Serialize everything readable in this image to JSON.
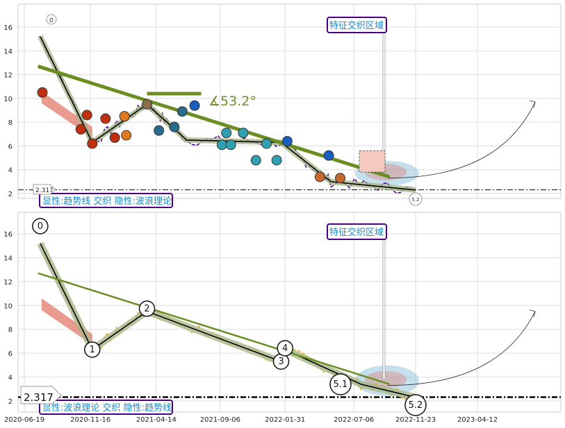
{
  "colors": {
    "trend": "#6b8e23",
    "price_top": "#4b0082",
    "price_bottom": "#e8a835",
    "wave": "#000000",
    "wave_halo": "#a8b88a",
    "red_fill": "#e07060",
    "ellipse": "#9ecae1",
    "box_border": "#4b0082",
    "box_text": "#1a86c8",
    "support": "#000000"
  },
  "top_panel": {
    "ylim": [
      1.2,
      17.4
    ],
    "yticks": [
      "2",
      "4",
      "6",
      "8",
      "10",
      "12",
      "14",
      "16"
    ],
    "annotation_box": "特征交织区域",
    "legend_text": "显性:趋势线 交织 隐性:波浪理论",
    "angle_label": "∡53.2°",
    "support_label": "2.317",
    "wave_start_label": "0",
    "wave_end_label": "5.2"
  },
  "bottom_panel": {
    "ylim": [
      1.2,
      17.4
    ],
    "yticks": [
      "2",
      "4",
      "6",
      "8",
      "10",
      "12",
      "14",
      "16"
    ],
    "annotation_box": "特征交织区域",
    "legend_text": "显性:波浪理论 交织 隐性:趋势线",
    "support_label": "2.317",
    "wave_labels": [
      "0",
      "1",
      "2",
      "3",
      "4",
      "5.1",
      "5.2"
    ]
  },
  "x_axis": {
    "tick_labels": [
      "2020-06-19",
      "2020-11-16",
      "2021-04-14",
      "2021-09-06",
      "2022-01-31",
      "2022-07-06",
      "2022-11-23",
      "2023-04-12"
    ]
  },
  "chart_data": [
    {
      "type": "line",
      "panel": "top",
      "support_level": 2.317,
      "waves": [
        {
          "x": "2020-07-25",
          "y": 15.2
        },
        {
          "x": "2020-11-20",
          "y": 6.3
        },
        {
          "x": "2021-03-24",
          "y": 9.5
        },
        {
          "x": "2021-06-22",
          "y": 6.5
        },
        {
          "x": "2022-01-22",
          "y": 6.3
        },
        {
          "x": "2022-05-15",
          "y": 3.0
        },
        {
          "x": "2022-11-23",
          "y": 2.3
        }
      ],
      "trendline": [
        {
          "x": "2020-07-20",
          "y": 12.7
        },
        {
          "x": "2022-09-25",
          "y": 3.4
        }
      ],
      "horizontal_line": [
        {
          "x": "2021-03-24",
          "y": 10.4
        },
        {
          "x": "2021-07-25",
          "y": 10.4
        }
      ],
      "angle_degrees": 53.2
    },
    {
      "type": "line",
      "panel": "bottom",
      "support_level": 2.317,
      "waves": [
        {
          "label": "0",
          "x": "2020-07-25",
          "y": 15.2
        },
        {
          "label": "1",
          "x": "2020-11-20",
          "y": 6.3
        },
        {
          "label": "2",
          "x": "2021-03-24",
          "y": 9.5
        },
        {
          "label": "3",
          "x": "2022-01-22",
          "y": 5.3
        },
        {
          "label": "4",
          "x": "2022-01-31",
          "y": 6.3
        },
        {
          "label": "5.1",
          "x": "2022-07-22",
          "y": 3.4
        },
        {
          "label": "5.2",
          "x": "2022-11-23",
          "y": 2.3
        }
      ],
      "trendline": [
        {
          "x": "2020-07-20",
          "y": 12.7
        },
        {
          "x": "2022-09-25",
          "y": 3.4
        }
      ]
    }
  ]
}
